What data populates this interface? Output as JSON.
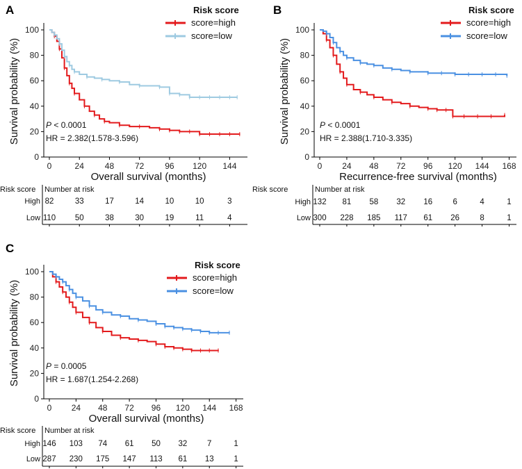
{
  "colors": {
    "high": "#e31a1c",
    "low_A": "#9ecae1",
    "low": "#4a90e2",
    "axis": "#000000"
  },
  "legend_title": "Risk score",
  "risk_header": "Risk score",
  "number_at_risk_label": "Number at risk",
  "chart_data": [
    {
      "id": "A",
      "type": "line",
      "title": "",
      "xlabel": "Overall survival (months)",
      "ylabel": "Survival probability (%)",
      "xlim": [
        0,
        156
      ],
      "ylim": [
        0,
        100
      ],
      "xticks": [
        0,
        24,
        48,
        72,
        96,
        120,
        144
      ],
      "yticks": [
        0,
        20,
        40,
        60,
        80,
        100
      ],
      "p_prefix": "P",
      "p_value": " < 0.0001",
      "hr": "HR = 2.382(1.578-3.596)",
      "series": [
        {
          "name": "score=high",
          "color_key": "high",
          "points": [
            [
              0,
              100
            ],
            [
              2,
              98
            ],
            [
              4,
              95
            ],
            [
              6,
              91
            ],
            [
              8,
              85
            ],
            [
              10,
              78
            ],
            [
              12,
              70
            ],
            [
              14,
              64
            ],
            [
              16,
              58
            ],
            [
              18,
              54
            ],
            [
              20,
              50
            ],
            [
              24,
              45
            ],
            [
              28,
              40
            ],
            [
              32,
              36
            ],
            [
              36,
              33
            ],
            [
              40,
              30
            ],
            [
              44,
              28
            ],
            [
              48,
              27
            ],
            [
              56,
              25
            ],
            [
              64,
              24
            ],
            [
              72,
              24
            ],
            [
              80,
              23
            ],
            [
              88,
              22
            ],
            [
              96,
              21
            ],
            [
              104,
              20
            ],
            [
              112,
              20
            ],
            [
              120,
              18
            ],
            [
              128,
              18
            ],
            [
              136,
              18
            ],
            [
              144,
              18
            ],
            [
              152,
              18
            ]
          ]
        },
        {
          "name": "score=low",
          "color_key": "low_A",
          "points": [
            [
              0,
              100
            ],
            [
              2,
              98
            ],
            [
              4,
              96
            ],
            [
              6,
              93
            ],
            [
              8,
              89
            ],
            [
              10,
              84
            ],
            [
              12,
              79
            ],
            [
              14,
              75
            ],
            [
              16,
              72
            ],
            [
              18,
              69
            ],
            [
              20,
              67
            ],
            [
              24,
              65
            ],
            [
              30,
              63
            ],
            [
              36,
              62
            ],
            [
              42,
              61
            ],
            [
              48,
              60
            ],
            [
              56,
              59
            ],
            [
              64,
              57
            ],
            [
              72,
              56
            ],
            [
              80,
              56
            ],
            [
              88,
              55
            ],
            [
              96,
              50
            ],
            [
              104,
              49
            ],
            [
              112,
              47
            ],
            [
              120,
              47
            ],
            [
              128,
              47
            ],
            [
              136,
              47
            ],
            [
              144,
              47
            ],
            [
              150,
              47
            ]
          ]
        }
      ],
      "risk_table": {
        "xticks": [
          0,
          24,
          48,
          72,
          96,
          120,
          144
        ],
        "rows": [
          {
            "label": "High",
            "color_key": "high",
            "values": [
              "82",
              "33",
              "17",
              "14",
              "10",
              "10",
              "3"
            ]
          },
          {
            "label": "Low",
            "color_key": "low",
            "values": [
              "110",
              "50",
              "38",
              "30",
              "19",
              "11",
              "4"
            ]
          }
        ]
      }
    },
    {
      "id": "B",
      "type": "line",
      "title": "",
      "xlabel": "Recurrence-free survival (months)",
      "ylabel": "Survival probability (%)",
      "xlim": [
        0,
        172
      ],
      "ylim": [
        0,
        100
      ],
      "xticks": [
        0,
        24,
        48,
        72,
        96,
        120,
        144,
        168
      ],
      "yticks": [
        0,
        20,
        40,
        60,
        80,
        100
      ],
      "p_prefix": "P",
      "p_value": " < 0.0001",
      "hr": "HR = 2.388(1.710-3.335)",
      "series": [
        {
          "name": "score=high",
          "color_key": "high",
          "points": [
            [
              0,
              100
            ],
            [
              3,
              97
            ],
            [
              6,
              92
            ],
            [
              9,
              86
            ],
            [
              12,
              80
            ],
            [
              15,
              73
            ],
            [
              18,
              67
            ],
            [
              21,
              62
            ],
            [
              24,
              57
            ],
            [
              30,
              53
            ],
            [
              36,
              51
            ],
            [
              42,
              49
            ],
            [
              48,
              47
            ],
            [
              56,
              45
            ],
            [
              64,
              43
            ],
            [
              72,
              42
            ],
            [
              80,
              40
            ],
            [
              88,
              39
            ],
            [
              96,
              38
            ],
            [
              104,
              37
            ],
            [
              112,
              37
            ],
            [
              118,
              32
            ],
            [
              128,
              32
            ],
            [
              140,
              32
            ],
            [
              152,
              32
            ],
            [
              164,
              33
            ]
          ]
        },
        {
          "name": "score=low",
          "color_key": "low",
          "points": [
            [
              0,
              100
            ],
            [
              3,
              99
            ],
            [
              6,
              97
            ],
            [
              9,
              94
            ],
            [
              12,
              90
            ],
            [
              15,
              86
            ],
            [
              18,
              83
            ],
            [
              21,
              80
            ],
            [
              24,
              78
            ],
            [
              30,
              76
            ],
            [
              36,
              74
            ],
            [
              42,
              73
            ],
            [
              48,
              72
            ],
            [
              56,
              70
            ],
            [
              64,
              69
            ],
            [
              72,
              68
            ],
            [
              80,
              67
            ],
            [
              88,
              67
            ],
            [
              96,
              66
            ],
            [
              108,
              66
            ],
            [
              120,
              65
            ],
            [
              132,
              65
            ],
            [
              144,
              65
            ],
            [
              156,
              65
            ],
            [
              166,
              64
            ]
          ]
        }
      ],
      "risk_table": {
        "xticks": [
          0,
          24,
          48,
          72,
          96,
          120,
          144,
          168
        ],
        "rows": [
          {
            "label": "High",
            "color_key": "high",
            "values": [
              "132",
              "81",
              "58",
              "32",
              "16",
              "6",
              "4",
              "1"
            ]
          },
          {
            "label": "Low",
            "color_key": "low",
            "values": [
              "300",
              "228",
              "185",
              "117",
              "61",
              "26",
              "8",
              "1"
            ]
          }
        ]
      }
    },
    {
      "id": "C",
      "type": "line",
      "title": "",
      "xlabel": "Overall survival (months)",
      "ylabel": "Survival probability (%)",
      "xlim": [
        0,
        172
      ],
      "ylim": [
        0,
        100
      ],
      "xticks": [
        0,
        24,
        48,
        72,
        96,
        120,
        144,
        168
      ],
      "yticks": [
        0,
        20,
        40,
        60,
        80,
        100
      ],
      "p_prefix": "P",
      "p_value": " = 0.0005",
      "hr": "HR = 1.687(1.254-2.268)",
      "series": [
        {
          "name": "score=high",
          "color_key": "high",
          "points": [
            [
              0,
              100
            ],
            [
              3,
              96
            ],
            [
              6,
              92
            ],
            [
              9,
              88
            ],
            [
              12,
              84
            ],
            [
              15,
              80
            ],
            [
              18,
              76
            ],
            [
              21,
              72
            ],
            [
              24,
              68
            ],
            [
              30,
              64
            ],
            [
              36,
              60
            ],
            [
              42,
              56
            ],
            [
              48,
              53
            ],
            [
              56,
              50
            ],
            [
              64,
              48
            ],
            [
              72,
              47
            ],
            [
              80,
              46
            ],
            [
              88,
              45
            ],
            [
              96,
              43
            ],
            [
              104,
              41
            ],
            [
              112,
              40
            ],
            [
              120,
              39
            ],
            [
              128,
              38
            ],
            [
              136,
              38
            ],
            [
              144,
              38
            ],
            [
              152,
              38
            ]
          ]
        },
        {
          "name": "score=low",
          "color_key": "low",
          "points": [
            [
              0,
              100
            ],
            [
              3,
              98
            ],
            [
              6,
              96
            ],
            [
              9,
              94
            ],
            [
              12,
              92
            ],
            [
              15,
              89
            ],
            [
              18,
              86
            ],
            [
              21,
              83
            ],
            [
              24,
              80
            ],
            [
              30,
              77
            ],
            [
              36,
              73
            ],
            [
              42,
              70
            ],
            [
              48,
              68
            ],
            [
              56,
              66
            ],
            [
              64,
              65
            ],
            [
              72,
              63
            ],
            [
              80,
              62
            ],
            [
              88,
              61
            ],
            [
              96,
              59
            ],
            [
              104,
              57
            ],
            [
              112,
              56
            ],
            [
              120,
              55
            ],
            [
              128,
              54
            ],
            [
              136,
              53
            ],
            [
              144,
              52
            ],
            [
              152,
              52
            ],
            [
              162,
              52
            ]
          ]
        }
      ],
      "risk_table": {
        "xticks": [
          0,
          24,
          48,
          72,
          96,
          120,
          144,
          168
        ],
        "rows": [
          {
            "label": "High",
            "color_key": "high",
            "values": [
              "146",
              "103",
              "74",
              "61",
              "50",
              "32",
              "7",
              "1"
            ]
          },
          {
            "label": "Low",
            "color_key": "low",
            "values": [
              "287",
              "230",
              "175",
              "147",
              "113",
              "61",
              "13",
              "1"
            ]
          }
        ]
      }
    }
  ]
}
